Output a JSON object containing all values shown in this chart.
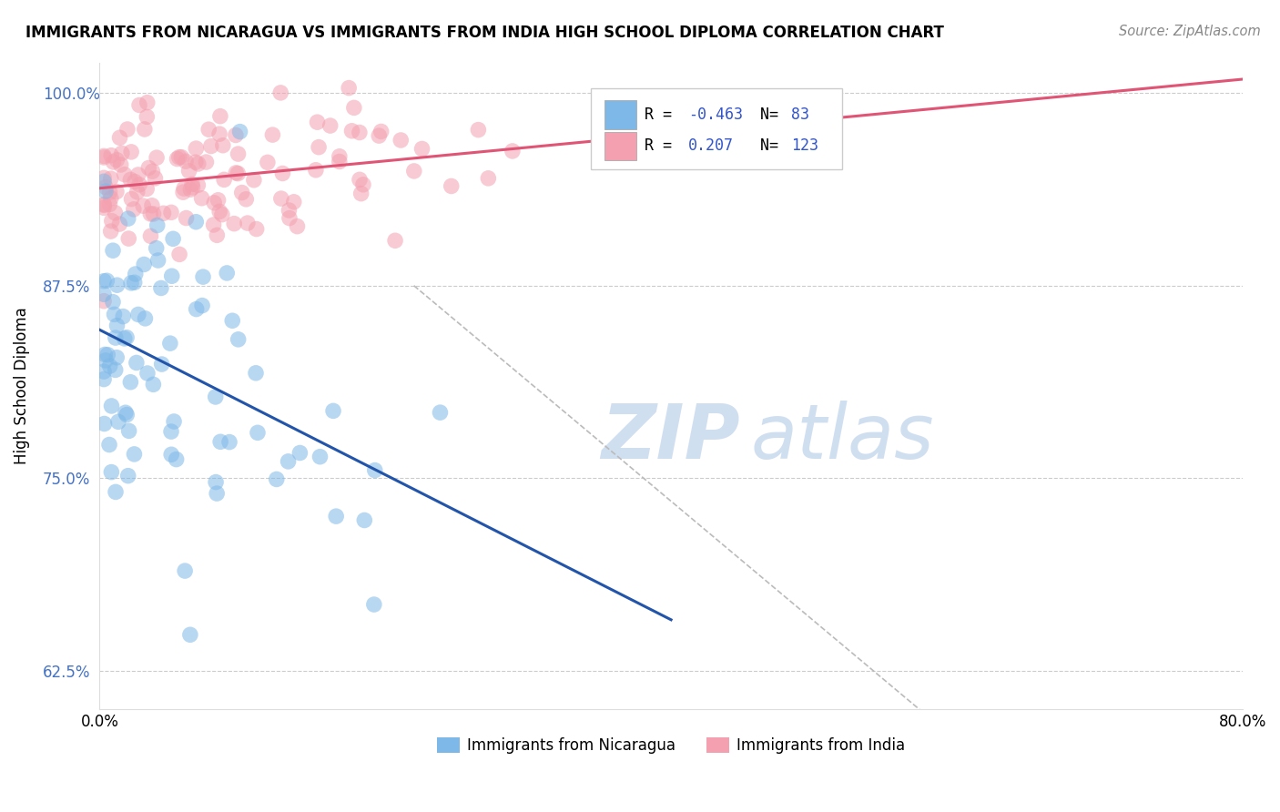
{
  "title": "IMMIGRANTS FROM NICARAGUA VS IMMIGRANTS FROM INDIA HIGH SCHOOL DIPLOMA CORRELATION CHART",
  "source": "Source: ZipAtlas.com",
  "ylabel": "High School Diploma",
  "xlabel": "",
  "legend_nicaragua": "Immigrants from Nicaragua",
  "legend_india": "Immigrants from India",
  "R_nicaragua": -0.463,
  "N_nicaragua": 83,
  "R_india": 0.207,
  "N_india": 123,
  "xlim": [
    0.0,
    0.8
  ],
  "ylim": [
    0.6,
    1.02
  ],
  "yticks": [
    0.625,
    0.75,
    0.875,
    1.0
  ],
  "ytick_labels": [
    "62.5%",
    "75.0%",
    "87.5%",
    "100.0%"
  ],
  "xticks": [
    0.0,
    0.2,
    0.4,
    0.6,
    0.8
  ],
  "xtick_labels": [
    "0.0%",
    "",
    "",
    "",
    "80.0%"
  ],
  "color_nicaragua": "#7EB8E8",
  "color_india": "#F4A0B0",
  "line_nicaragua": "#2255AA",
  "line_india": "#E05575",
  "watermark_color": "#D0DFF0",
  "legend_R_color": "#3355CC"
}
